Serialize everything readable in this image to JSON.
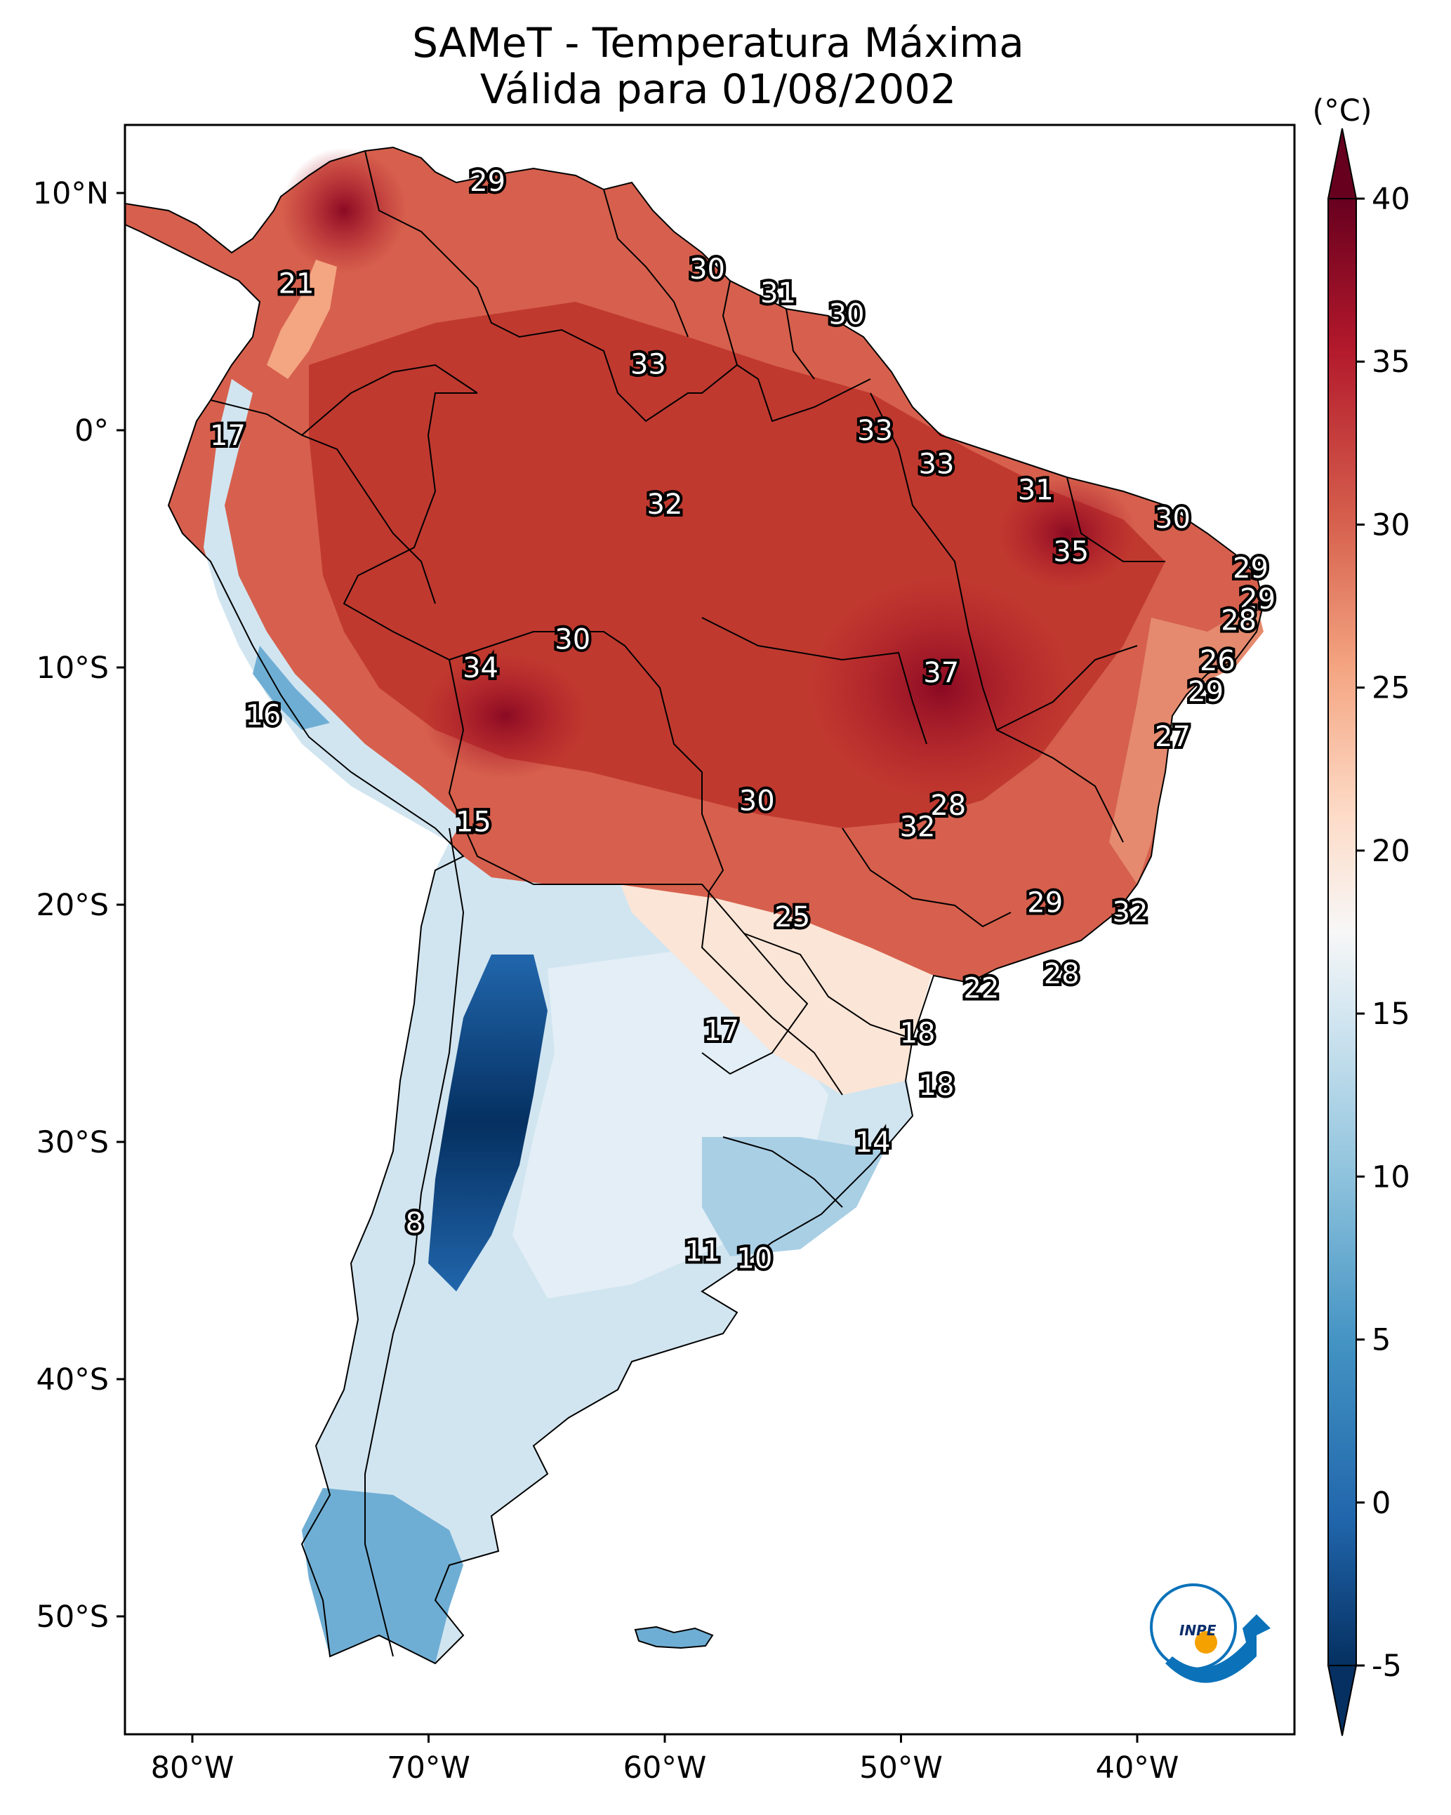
{
  "map": {
    "title_line1": "SAMeT - Temperatura Máxima",
    "title_line2": "Válida para 01/08/2002",
    "lat_ticks": [
      "10°N",
      "0°",
      "10°S",
      "20°S",
      "30°S",
      "40°S",
      "50°S"
    ],
    "lon_ticks": [
      "80°W",
      "70°W",
      "60°W",
      "50°W",
      "40°W"
    ],
    "colorbar": {
      "unit": "(°C)",
      "ticks": [
        "40",
        "35",
        "30",
        "25",
        "20",
        "15",
        "10",
        "5",
        "0",
        "-5"
      ],
      "range": [
        -5,
        40
      ],
      "colormap": "RdBu_r",
      "colors": {
        "cold": "#053061",
        "cool": "#4393c3",
        "light_blue": "#d1e5f0",
        "neutral": "#f7f7f7",
        "light_red": "#fddbc7",
        "warm": "#d6604d",
        "hot": "#67001f"
      }
    },
    "station_labels": [
      {
        "value": "29",
        "lon": -67.5,
        "lat": 10.5
      },
      {
        "value": "21",
        "lon": -75.6,
        "lat": 6.2
      },
      {
        "value": "30",
        "lon": -58.2,
        "lat": 6.8
      },
      {
        "value": "31",
        "lon": -55.2,
        "lat": 5.8
      },
      {
        "value": "30",
        "lon": -52.3,
        "lat": 4.9
      },
      {
        "value": "33",
        "lon": -60.7,
        "lat": 2.8
      },
      {
        "value": "33",
        "lon": -51.1,
        "lat": 0.0
      },
      {
        "value": "17",
        "lon": -78.5,
        "lat": -0.2
      },
      {
        "value": "33",
        "lon": -48.5,
        "lat": -1.4
      },
      {
        "value": "31",
        "lon": -44.3,
        "lat": -2.5
      },
      {
        "value": "30",
        "lon": -38.5,
        "lat": -3.7
      },
      {
        "value": "32",
        "lon": -60.0,
        "lat": -3.1
      },
      {
        "value": "35",
        "lon": -42.8,
        "lat": -5.1
      },
      {
        "value": "29",
        "lon": -35.2,
        "lat": -5.8
      },
      {
        "value": "29",
        "lon": -34.9,
        "lat": -7.1
      },
      {
        "value": "28",
        "lon": -35.7,
        "lat": -8.0
      },
      {
        "value": "30",
        "lon": -63.9,
        "lat": -8.8
      },
      {
        "value": "26",
        "lon": -36.6,
        "lat": -9.7
      },
      {
        "value": "34",
        "lon": -67.8,
        "lat": -10.0
      },
      {
        "value": "37",
        "lon": -48.3,
        "lat": -10.2
      },
      {
        "value": "29",
        "lon": -37.1,
        "lat": -11.0
      },
      {
        "value": "16",
        "lon": -77.0,
        "lat": -12.0
      },
      {
        "value": "27",
        "lon": -38.5,
        "lat": -12.9
      },
      {
        "value": "15",
        "lon": -68.1,
        "lat": -16.5
      },
      {
        "value": "30",
        "lon": -56.1,
        "lat": -15.6
      },
      {
        "value": "28",
        "lon": -48.0,
        "lat": -15.8
      },
      {
        "value": "32",
        "lon": -49.3,
        "lat": -16.7
      },
      {
        "value": "29",
        "lon": -43.9,
        "lat": -19.9
      },
      {
        "value": "32",
        "lon": -40.3,
        "lat": -20.3
      },
      {
        "value": "25",
        "lon": -54.6,
        "lat": -20.5
      },
      {
        "value": "22",
        "lon": -46.6,
        "lat": -23.5
      },
      {
        "value": "28",
        "lon": -43.2,
        "lat": -22.9
      },
      {
        "value": "17",
        "lon": -57.6,
        "lat": -25.3
      },
      {
        "value": "18",
        "lon": -49.3,
        "lat": -25.4
      },
      {
        "value": "18",
        "lon": -48.5,
        "lat": -27.6
      },
      {
        "value": "14",
        "lon": -51.2,
        "lat": -30.0
      },
      {
        "value": "8",
        "lon": -70.6,
        "lat": -33.4
      },
      {
        "value": "11",
        "lon": -58.4,
        "lat": -34.6
      },
      {
        "value": "10",
        "lon": -56.2,
        "lat": -34.9
      }
    ],
    "logo_text": "INPE"
  }
}
